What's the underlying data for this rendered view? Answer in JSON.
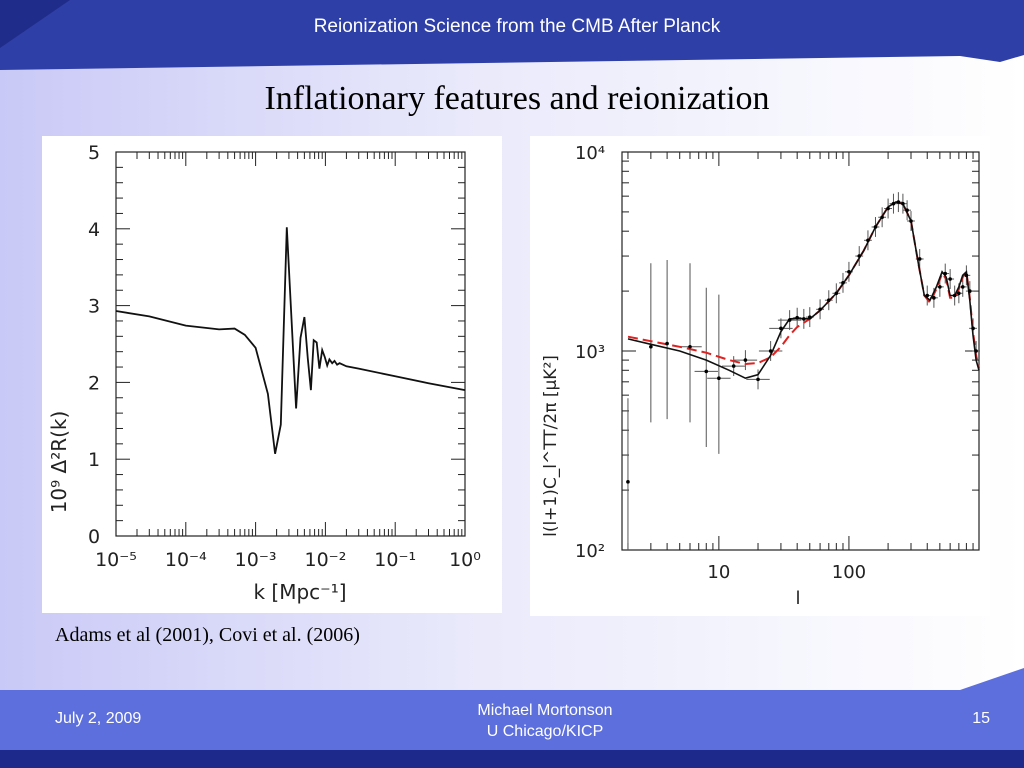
{
  "header": {
    "deck_title": "Reionization Science from the CMB After Planck"
  },
  "slide": {
    "title": "Inflationary features and reionization",
    "citation": "Adams et al (2001), Covi et al. (2006)"
  },
  "footer": {
    "date": "July 2, 2009",
    "author_line1": "Michael Mortonson",
    "author_line2": "U Chicago/KICP",
    "page": "15"
  },
  "colors": {
    "header_bar": "#2f3fa8",
    "footer_bar": "#5c6fdc",
    "accent_red": "#dd2222"
  },
  "chart_data": [
    {
      "type": "line",
      "xlabel": "k [Mpc⁻¹]",
      "ylabel": "10⁹ Δ²R(k)",
      "x_scale": "log",
      "xlim": [
        1e-05,
        1
      ],
      "ylim": [
        0,
        5
      ],
      "x_tick_labels": [
        "10⁻⁵",
        "10⁻⁴",
        "10⁻³",
        "10⁻²",
        "10⁻¹",
        "10⁰"
      ],
      "y_tick_labels": [
        "0",
        "1",
        "2",
        "3",
        "4",
        "5"
      ],
      "series": [
        {
          "x": [
            1e-05,
            3e-05,
            0.0001,
            0.0003,
            0.0005,
            0.0007,
            0.001,
            0.0015,
            0.0019,
            0.0023,
            0.0028,
            0.0033,
            0.0038,
            0.0044,
            0.005,
            0.0056,
            0.0062,
            0.0068,
            0.0075,
            0.0082,
            0.009,
            0.0098,
            0.0106,
            0.0114,
            0.0125,
            0.0135,
            0.0147,
            0.016,
            0.02,
            0.03,
            0.1,
            0.3,
            1
          ],
          "y": [
            2.93,
            2.86,
            2.74,
            2.69,
            2.7,
            2.62,
            2.45,
            1.85,
            1.07,
            1.45,
            4.02,
            2.75,
            1.66,
            2.58,
            2.85,
            2.31,
            1.9,
            2.55,
            2.52,
            2.18,
            2.42,
            2.33,
            2.22,
            2.3,
            2.25,
            2.28,
            2.23,
            2.25,
            2.21,
            2.18,
            2.08,
            1.99,
            1.9
          ]
        }
      ]
    },
    {
      "type": "line",
      "xlabel": "l",
      "ylabel": "l(l+1)C_l^TT/2π [μK²]",
      "x_scale": "log",
      "y_scale": "log",
      "xlim": [
        1.8,
        1000
      ],
      "ylim": [
        100,
        10000
      ],
      "x_tick_labels": [
        "10",
        "100"
      ],
      "y_tick_labels": [
        "10²",
        "10³",
        "10⁴"
      ],
      "series": [
        {
          "name": "model-black",
          "color": "#111111",
          "x": [
            2,
            3,
            5,
            8,
            12,
            16,
            20,
            25,
            30,
            35,
            40,
            50,
            60,
            80,
            100,
            130,
            160,
            200,
            230,
            260,
            300,
            340,
            380,
            420,
            470,
            520,
            560,
            600,
            650,
            700,
            750,
            800,
            850,
            900,
            950,
            1000
          ],
          "y": [
            1150,
            1080,
            1000,
            900,
            800,
            730,
            760,
            950,
            1250,
            1450,
            1460,
            1450,
            1600,
            1950,
            2400,
            3200,
            4200,
            5300,
            5600,
            5500,
            4500,
            2800,
            1900,
            1800,
            2100,
            2500,
            2350,
            1900,
            1900,
            2100,
            2400,
            2500,
            1800,
            1200,
            900,
            800
          ]
        },
        {
          "name": "model-red",
          "color": "#dd2222",
          "x": [
            2,
            3,
            5,
            8,
            12,
            16,
            20,
            25,
            30,
            35,
            40,
            50,
            60,
            80,
            100,
            130,
            160,
            200,
            230,
            260,
            300,
            340,
            380,
            420,
            470,
            520,
            560,
            600,
            650,
            700,
            750,
            800,
            850,
            900,
            950,
            1000
          ],
          "y": [
            1180,
            1120,
            1050,
            980,
            900,
            860,
            870,
            930,
            1050,
            1200,
            1320,
            1450,
            1600,
            1950,
            2400,
            3200,
            4200,
            5300,
            5600,
            5500,
            4500,
            2800,
            1900,
            1750,
            2050,
            2450,
            2300,
            1850,
            1850,
            2050,
            2350,
            2500,
            1850,
            1250,
            950,
            820
          ]
        },
        {
          "name": "data-points",
          "x": [
            2,
            3,
            4,
            6,
            8,
            10,
            13,
            16,
            20,
            25,
            30,
            35,
            40,
            45,
            50,
            60,
            70,
            80,
            90,
            100,
            120,
            140,
            160,
            180,
            200,
            220,
            240,
            260,
            280,
            300,
            350,
            400,
            450,
            500,
            550,
            600,
            650,
            700,
            750,
            800,
            850,
            900,
            950
          ],
          "y": [
            220,
            1050,
            1090,
            1050,
            790,
            730,
            840,
            900,
            720,
            1000,
            1300,
            1430,
            1470,
            1450,
            1480,
            1620,
            1800,
            1950,
            2200,
            2500,
            3000,
            3600,
            4200,
            4700,
            5200,
            5500,
            5600,
            5500,
            5100,
            4500,
            2900,
            1900,
            1850,
            2100,
            2450,
            2300,
            1900,
            1950,
            2100,
            2400,
            2000,
            1300,
            1000
          ]
        }
      ]
    }
  ]
}
